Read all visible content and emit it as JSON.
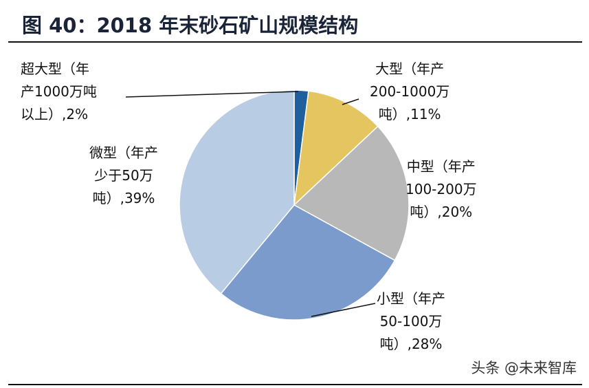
{
  "title": "图 40：2018 年末砂石矿山规模结构",
  "watermark": "头条 @未来智库",
  "chart_data": {
    "type": "pie",
    "title": "图 40：2018 年末砂石矿山规模结构",
    "start": "12 o'clock, clockwise",
    "slices": [
      {
        "label": [
          "超大型（年",
          "产1000万吨",
          "以上）,2%"
        ],
        "value": 2,
        "color": "#1f5f9e"
      },
      {
        "label": [
          "大型（年产",
          "200-1000万",
          "吨）,11%"
        ],
        "value": 11,
        "color": "#e5c560"
      },
      {
        "label": [
          "中型（年产",
          "100-200万",
          "吨）,20%"
        ],
        "value": 20,
        "color": "#b8b8b8"
      },
      {
        "label": [
          "小型（年产",
          "50-100万",
          "吨）,28%"
        ],
        "value": 28,
        "color": "#7a9bcb"
      },
      {
        "label": [
          "微型（年产",
          "少于50万",
          "吨）,39%"
        ],
        "value": 39,
        "color": "#b8cce4"
      }
    ]
  }
}
